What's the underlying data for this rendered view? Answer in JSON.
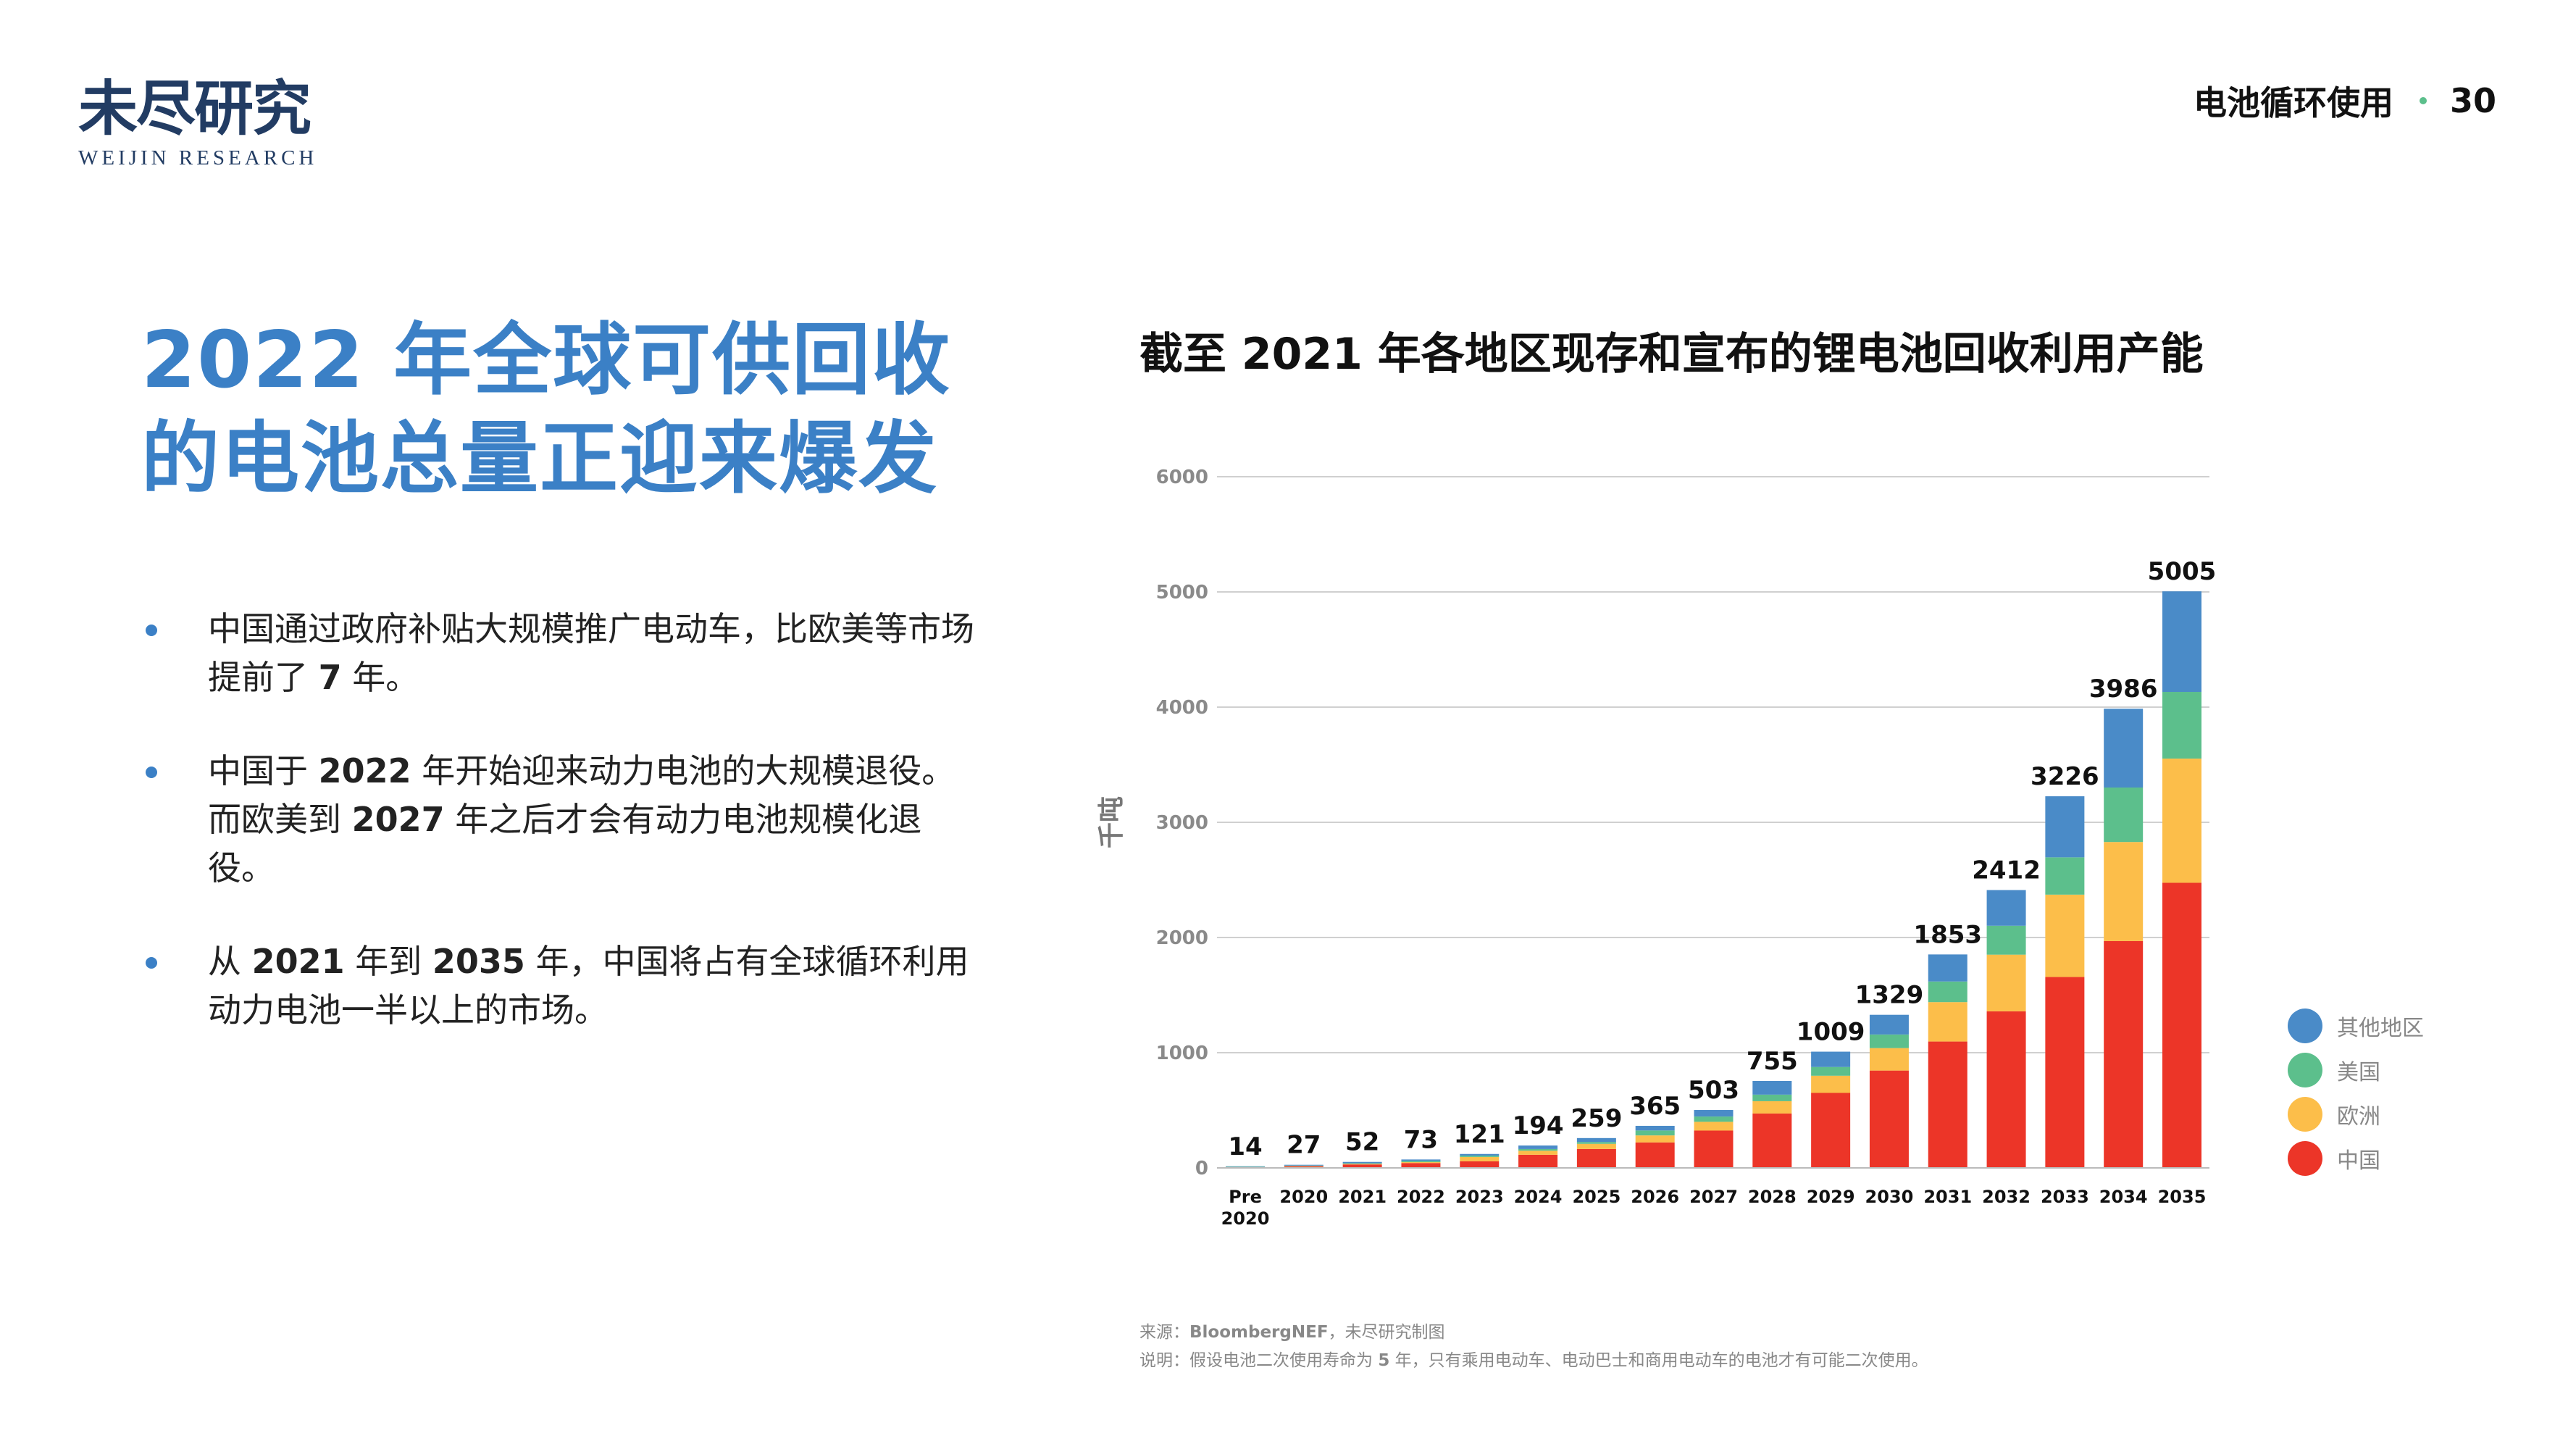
{
  "logo": {
    "cn": "未尽研究",
    "en": "WEIJIN RESEARCH"
  },
  "header": {
    "section": "电池循环使用",
    "page": "30",
    "dot_color": "#5cbf8c"
  },
  "title": {
    "line1": "2022 年全球可供回收",
    "line2": "的电池总量正迎来爆发"
  },
  "bullets": [
    {
      "parts": [
        "中国通过政府补贴大规模推广电动车，比欧美等市场提前了 ",
        "7",
        " 年。"
      ]
    },
    {
      "parts": [
        "中国于 ",
        "2022",
        " 年开始迎来动力电池的大规模退役。而欧美到 ",
        "2027",
        " 年之后才会有动力电池规模化退役。"
      ]
    },
    {
      "parts": [
        "从 ",
        "2021",
        " 年到 ",
        "2035",
        " 年，中国将占有全球循环利用动力电池一半以上的市场。"
      ]
    }
  ],
  "chart_data": {
    "type": "bar",
    "stacked": true,
    "title": "截至 2021 年各地区现存和宣布的锂电池回收利用产能",
    "ylabel": "千吨",
    "xlabel": "",
    "ylim": [
      0,
      6000
    ],
    "yticks": [
      "0",
      "1000",
      "2000",
      "3000",
      "4000",
      "5000",
      "6000"
    ],
    "grid": true,
    "legend_position": "right",
    "categories": [
      "Pre 2020",
      "2020",
      "2021",
      "2022",
      "2023",
      "2024",
      "2025",
      "2026",
      "2027",
      "2028",
      "2029",
      "2030",
      "2031",
      "2032",
      "2033",
      "2034",
      "2035"
    ],
    "totals": [
      14,
      27,
      52,
      73,
      121,
      194,
      259,
      365,
      503,
      755,
      1009,
      1329,
      1853,
      2412,
      3226,
      3986,
      5005
    ],
    "series": [
      {
        "name": "中国",
        "color": "#ec3528",
        "values": [
          6,
          14,
          30,
          42,
          57,
          114,
          164,
          221,
          324,
          472,
          651,
          845,
          1097,
          1359,
          1657,
          1969,
          2475
        ]
      },
      {
        "name": "欧洲",
        "color": "#fcbe4a",
        "values": [
          2,
          3,
          5,
          8,
          38,
          35,
          45,
          61,
          76,
          107,
          149,
          195,
          342,
          492,
          715,
          860,
          1078
        ]
      },
      {
        "name": "美国",
        "color": "#5cbf8c",
        "values": [
          2,
          3,
          5,
          11,
          12,
          15,
          16,
          43,
          46,
          57,
          76,
          118,
          179,
          251,
          324,
          473,
          579
        ]
      },
      {
        "name": "其他地区",
        "color": "#4a8bc8",
        "values": [
          4,
          7,
          12,
          12,
          14,
          30,
          34,
          40,
          57,
          119,
          133,
          171,
          235,
          310,
          530,
          684,
          873
        ]
      }
    ],
    "legend_order": [
      "其他地区",
      "美国",
      "欧洲",
      "中国"
    ]
  },
  "footnote": {
    "source_label": "来源：",
    "source_bold": "BloombergNEF",
    "source_rest": "，未尽研究制图",
    "note_a": "说明：假设电池二次使用寿命为 ",
    "note_bold": "5",
    "note_b": " 年，只有乘用电动车、电动巴士和商用电动车的电池才有可能二次使用。"
  }
}
